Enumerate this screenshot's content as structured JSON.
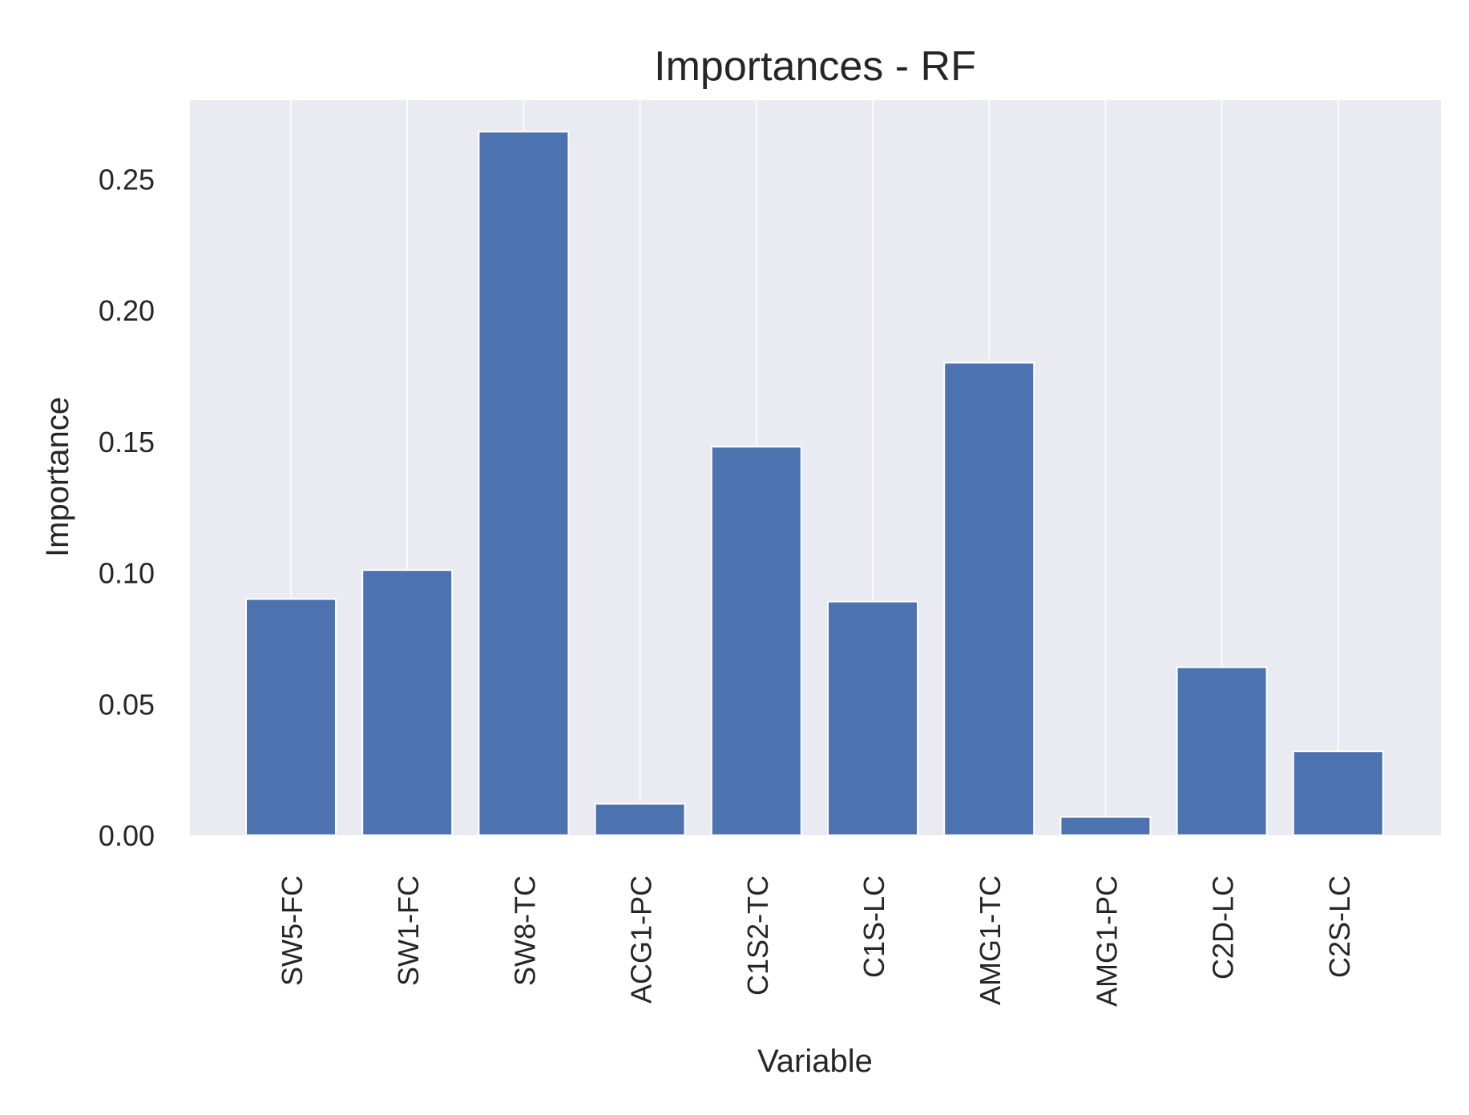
{
  "chart_data": {
    "type": "bar",
    "title": "Importances - RF",
    "xlabel": "Variable",
    "ylabel": "Importance",
    "categories": [
      "SW5-FC",
      "SW1-FC",
      "SW8-TC",
      "ACG1-PC",
      "C1S2-TC",
      "C1S-LC",
      "AMG1-TC",
      "AMG1-PC",
      "C2D-LC",
      "C2S-LC"
    ],
    "values": [
      0.09,
      0.101,
      0.268,
      0.012,
      0.148,
      0.089,
      0.18,
      0.007,
      0.064,
      0.032
    ],
    "ylim": [
      0,
      0.28
    ],
    "yticks": [
      "0.00",
      "0.05",
      "0.10",
      "0.15",
      "0.20",
      "0.25"
    ],
    "grid": true,
    "colors": {
      "bar": "#4c72b0",
      "plot_background": "#eaeaf2",
      "grid": "#ffffff"
    }
  }
}
